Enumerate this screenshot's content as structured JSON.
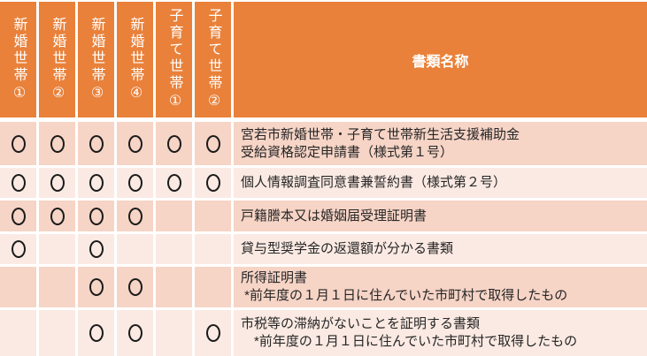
{
  "header": {
    "household_columns": [
      "新婚世帯①",
      "新婚世帯②",
      "新婚世帯③",
      "新婚世帯④",
      "子育て世帯①",
      "子育て世帯②"
    ],
    "document_name_label": "書類名称"
  },
  "table": {
    "mark_symbol": "○",
    "rows": [
      {
        "marks": [
          true,
          true,
          true,
          true,
          true,
          true
        ],
        "document_name_lines": [
          "宮若市新婚世帯・子育て世帯新生活支援補助金",
          "受給資格認定申請書（様式第１号）"
        ]
      },
      {
        "marks": [
          true,
          true,
          true,
          true,
          true,
          true
        ],
        "document_name_lines": [
          "個人情報調査同意書兼誓約書（様式第２号）"
        ]
      },
      {
        "marks": [
          true,
          true,
          true,
          true,
          false,
          false
        ],
        "document_name_lines": [
          "戸籍謄本又は婚姻届受理証明書"
        ]
      },
      {
        "marks": [
          true,
          false,
          true,
          false,
          false,
          false
        ],
        "document_name_lines": [
          "貸与型奨学金の返還額が分かる書類"
        ]
      },
      {
        "marks": [
          false,
          false,
          true,
          true,
          false,
          false
        ],
        "document_name_lines": [
          "所得証明書",
          " *前年度の１月１日に住んでいた市町村で取得したもの"
        ]
      },
      {
        "marks": [
          false,
          false,
          true,
          true,
          false,
          true
        ],
        "document_name_lines": [
          "市税等の滞納がないことを証明する書類",
          "　*前年度の１月１日に住んでいた市町村で取得したもの"
        ]
      }
    ]
  },
  "colors": {
    "header_bg": "#E9813A",
    "row_band_dark": "#F6D4C6",
    "row_band_light": "#FBEAE3",
    "header_text": "#FFFFFF",
    "body_text": "#262626",
    "mark": "#1B1B1B"
  }
}
